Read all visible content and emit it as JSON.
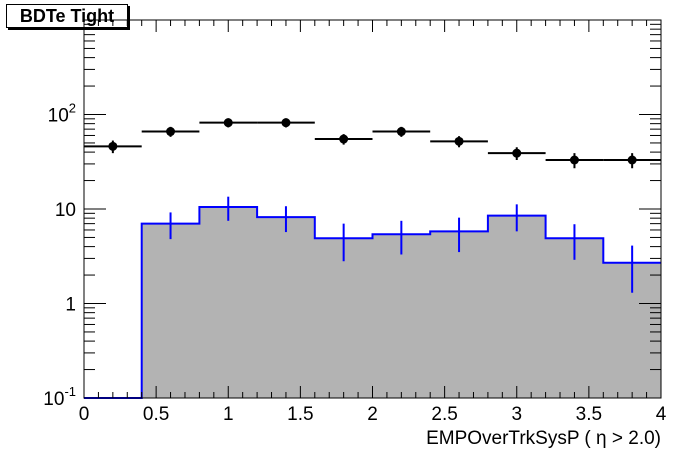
{
  "chart_data": {
    "type": "bar",
    "title": "BDTe Tight",
    "xlabel": "EMPOverTrkSysP ( η > 2.0)",
    "ylabel": "",
    "xlim": [
      0,
      4
    ],
    "ylim": [
      0.1,
      1000
    ],
    "yscale": "log",
    "grid": false,
    "x_ticks": [
      "0",
      "0.5",
      "1",
      "1.5",
      "2",
      "2.5",
      "3",
      "3.5",
      "4"
    ],
    "y_ticks": [
      {
        "value": 0.1,
        "base": "10",
        "exp": "-1",
        "text": ""
      },
      {
        "value": 1,
        "base": "",
        "exp": "",
        "text": "1"
      },
      {
        "value": 10,
        "base": "",
        "exp": "",
        "text": "10"
      },
      {
        "value": 100,
        "base": "10",
        "exp": "2",
        "text": ""
      }
    ],
    "series": [
      {
        "kind": "histogram",
        "color": "#0000ff",
        "fill": "#b3b3b3",
        "bins": [
          {
            "x0": 0.0,
            "x1": 0.4,
            "y": 0.1,
            "err": 0
          },
          {
            "x0": 0.4,
            "x1": 0.8,
            "y": 7.0,
            "err": 2.2
          },
          {
            "x0": 0.8,
            "x1": 1.2,
            "y": 10.5,
            "err": 3.0
          },
          {
            "x0": 1.2,
            "x1": 1.6,
            "y": 8.2,
            "err": 2.5
          },
          {
            "x0": 1.6,
            "x1": 2.0,
            "y": 4.9,
            "err": 2.1
          },
          {
            "x0": 2.0,
            "x1": 2.4,
            "y": 5.4,
            "err": 2.1
          },
          {
            "x0": 2.4,
            "x1": 2.8,
            "y": 5.8,
            "err": 2.3
          },
          {
            "x0": 2.8,
            "x1": 3.2,
            "y": 8.5,
            "err": 2.7
          },
          {
            "x0": 3.2,
            "x1": 3.6,
            "y": 4.9,
            "err": 2.0
          },
          {
            "x0": 3.6,
            "x1": 4.0,
            "y": 2.7,
            "err": 1.4
          }
        ]
      },
      {
        "kind": "points",
        "color": "#000000",
        "points": [
          {
            "x": 0.2,
            "y": 46,
            "err": 7
          },
          {
            "x": 0.6,
            "y": 66,
            "err": 8
          },
          {
            "x": 1.0,
            "y": 82,
            "err": 9
          },
          {
            "x": 1.4,
            "y": 82,
            "err": 9
          },
          {
            "x": 1.8,
            "y": 55,
            "err": 7
          },
          {
            "x": 2.2,
            "y": 66,
            "err": 8
          },
          {
            "x": 2.6,
            "y": 52,
            "err": 7
          },
          {
            "x": 3.0,
            "y": 39,
            "err": 6
          },
          {
            "x": 3.4,
            "y": 33,
            "err": 6
          },
          {
            "x": 3.8,
            "y": 33,
            "err": 6
          }
        ],
        "xerr": 0.2
      }
    ]
  }
}
